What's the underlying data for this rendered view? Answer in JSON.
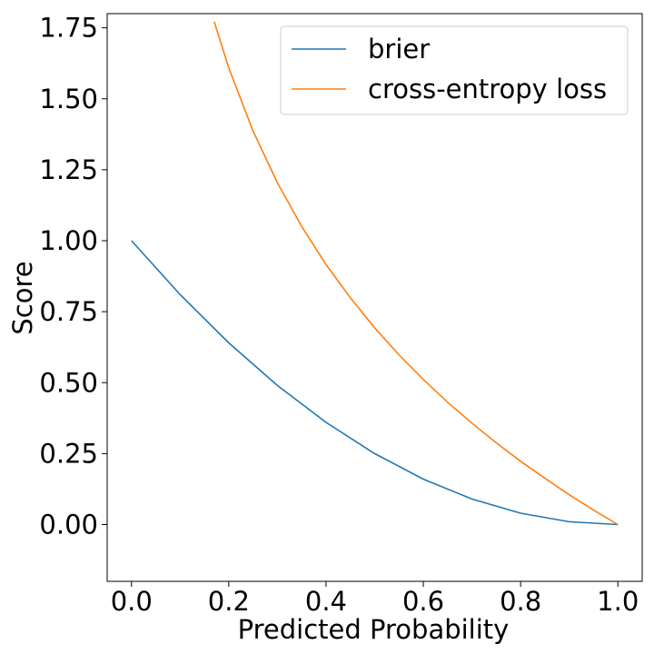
{
  "chart_data": {
    "type": "line",
    "xlabel": "Predicted Probability",
    "ylabel": "Score",
    "xlim": [
      -0.05,
      1.05
    ],
    "ylim": [
      -0.2,
      1.8
    ],
    "xticks": [
      0.0,
      0.2,
      0.4,
      0.6,
      0.8,
      1.0
    ],
    "xtick_labels": [
      "0.0",
      "0.2",
      "0.4",
      "0.6",
      "0.8",
      "1.0"
    ],
    "yticks": [
      0.0,
      0.25,
      0.5,
      0.75,
      1.0,
      1.25,
      1.5,
      1.75
    ],
    "ytick_labels": [
      "0.00",
      "0.25",
      "0.50",
      "0.75",
      "1.00",
      "1.25",
      "1.50",
      "1.75"
    ],
    "grid": false,
    "legend_position": "top-right",
    "series": [
      {
        "name": "brier",
        "color": "#1f77b4",
        "x": [
          0.0,
          0.1,
          0.2,
          0.3,
          0.4,
          0.5,
          0.6,
          0.7,
          0.8,
          0.9,
          1.0
        ],
        "y": [
          1.0,
          0.81,
          0.64,
          0.49,
          0.36,
          0.25,
          0.16,
          0.09,
          0.04,
          0.01,
          0.0
        ]
      },
      {
        "name": "cross-entropy loss",
        "color": "#ff7f0e",
        "x": [
          0.17,
          0.2,
          0.25,
          0.3,
          0.35,
          0.4,
          0.45,
          0.5,
          0.55,
          0.6,
          0.65,
          0.7,
          0.75,
          0.8,
          0.85,
          0.9,
          0.95,
          1.0
        ],
        "y": [
          1.772,
          1.609,
          1.386,
          1.204,
          1.05,
          0.916,
          0.799,
          0.693,
          0.598,
          0.511,
          0.431,
          0.357,
          0.288,
          0.223,
          0.163,
          0.105,
          0.051,
          0.0
        ]
      }
    ]
  }
}
